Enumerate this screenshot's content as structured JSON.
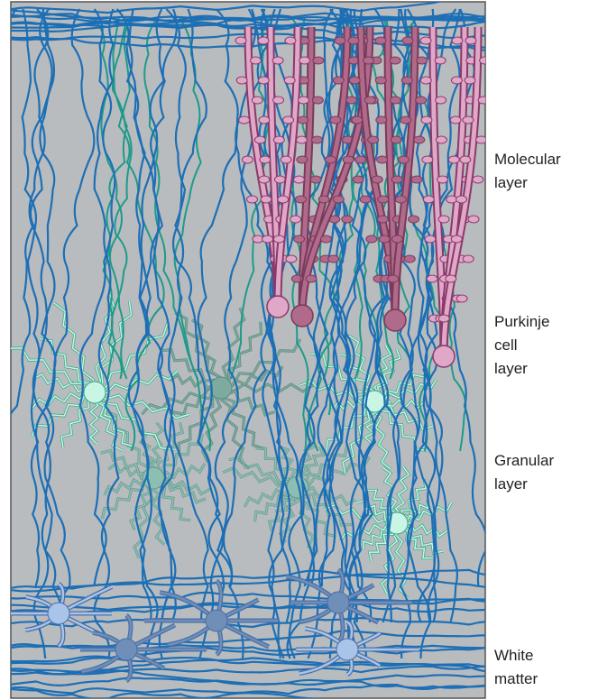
{
  "labels": [
    {
      "lines": [
        "Molecular",
        "layer"
      ]
    },
    {
      "lines": [
        "Purkinje",
        "cell",
        "layer"
      ]
    },
    {
      "lines": [
        "Granular",
        "layer"
      ]
    },
    {
      "lines": [
        "White",
        "matter"
      ]
    }
  ]
}
